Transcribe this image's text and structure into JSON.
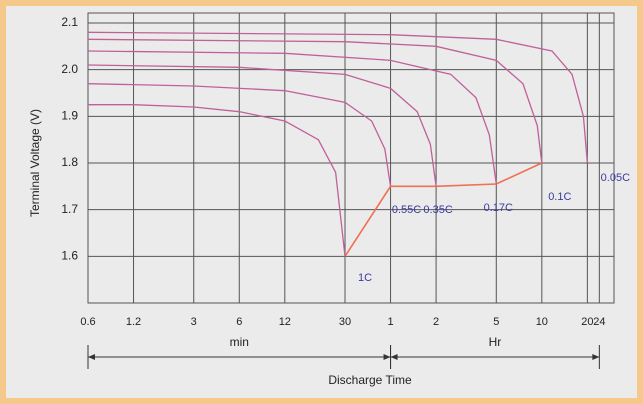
{
  "chart_data": {
    "type": "line",
    "x_axis_title": "Discharge Time",
    "y_axis_title": "Terminal Voltage  (V)",
    "x_groups": [
      {
        "label": "min",
        "range": [
          0.6,
          60
        ]
      },
      {
        "label": "Hr",
        "range": [
          60,
          1440
        ]
      }
    ],
    "xscale": "log",
    "xlim": [
      0.6,
      1800
    ],
    "xticks": [
      0.6,
      1.2,
      3,
      6,
      12,
      30,
      {
        "value": 60,
        "label": "1"
      },
      {
        "value": 120,
        "label": "2"
      },
      {
        "value": 300,
        "label": "5"
      },
      {
        "value": 600,
        "label": "10"
      },
      {
        "value": 1200,
        "label": "20"
      },
      {
        "value": 1440,
        "label": "24"
      }
    ],
    "ylim": [
      1.5,
      2.1
    ],
    "yticks": [
      1.6,
      1.7,
      1.8,
      1.9,
      {
        "value": 2,
        "label": "2.0"
      },
      2.1
    ],
    "grid": true,
    "series": [
      {
        "name": "1C",
        "color": "#c0609a",
        "x": [
          0.6,
          1.2,
          3,
          6,
          12,
          20,
          26,
          30
        ],
        "values": [
          1.925,
          1.925,
          1.92,
          1.91,
          1.89,
          1.85,
          1.78,
          1.6
        ]
      },
      {
        "name": "0.55C",
        "color": "#c0609a",
        "x": [
          0.6,
          3,
          12,
          30,
          45,
          55,
          60
        ],
        "values": [
          1.97,
          1.965,
          1.955,
          1.93,
          1.89,
          1.83,
          1.75
        ]
      },
      {
        "name": "0.35C",
        "color": "#c0609a",
        "x": [
          0.6,
          6,
          30,
          60,
          90,
          110,
          120
        ],
        "values": [
          2.01,
          2.005,
          1.99,
          1.96,
          1.91,
          1.84,
          1.75
        ]
      },
      {
        "name": "0.17C",
        "color": "#c0609a",
        "x": [
          0.6,
          12,
          60,
          150,
          220,
          270,
          300
        ],
        "values": [
          2.04,
          2.035,
          2.02,
          1.99,
          1.94,
          1.86,
          1.755
        ]
      },
      {
        "name": "0.1C",
        "color": "#c0609a",
        "x": [
          0.6,
          30,
          120,
          300,
          450,
          560,
          600
        ],
        "values": [
          2.065,
          2.06,
          2.05,
          2.02,
          1.97,
          1.88,
          1.8
        ]
      },
      {
        "name": "0.05C",
        "color": "#c0609a",
        "x": [
          0.6,
          60,
          300,
          700,
          950,
          1130,
          1200
        ],
        "values": [
          2.08,
          2.075,
          2.065,
          2.04,
          1.99,
          1.9,
          1.8
        ]
      }
    ],
    "cutoff": {
      "color": "#f07050",
      "x": [
        30,
        60,
        120,
        300,
        600
      ],
      "values": [
        1.6,
        1.75,
        1.75,
        1.755,
        1.8
      ]
    }
  }
}
